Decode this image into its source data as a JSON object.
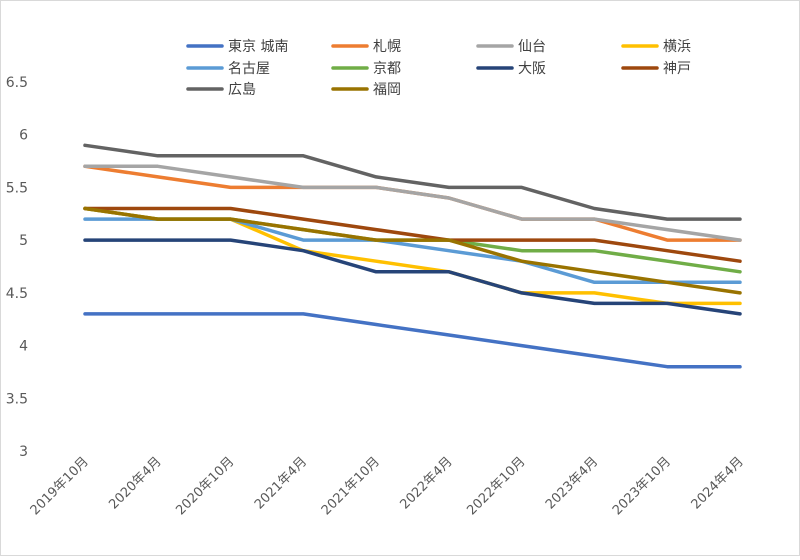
{
  "chart_data": {
    "type": "line",
    "title": "",
    "xlabel": "",
    "ylabel": "",
    "ylim": [
      3,
      6.5
    ],
    "yticks": [
      3,
      3.5,
      4,
      4.5,
      5,
      5.5,
      6,
      6.5
    ],
    "ytick_labels": [
      "3",
      "3.5",
      "4",
      "4.5",
      "5",
      "5.5",
      "6",
      "6.5"
    ],
    "grid": false,
    "legend_position": "top",
    "categories": [
      "2019年10月",
      "2020年4月",
      "2020年10月",
      "2021年4月",
      "2021年10月",
      "2022年4月",
      "2022年10月",
      "2023年4月",
      "2023年10月",
      "2024年4月"
    ],
    "series": [
      {
        "name": "東京 城南",
        "color": "#4472c4",
        "values": [
          4.3,
          4.3,
          4.3,
          4.3,
          4.2,
          4.1,
          4.0,
          3.9,
          3.8,
          3.8
        ]
      },
      {
        "name": "札幌",
        "color": "#ed7d31",
        "values": [
          5.7,
          5.6,
          5.5,
          5.5,
          5.5,
          5.4,
          5.2,
          5.2,
          5.0,
          5.0
        ]
      },
      {
        "name": "仙台",
        "color": "#a5a5a5",
        "values": [
          5.7,
          5.7,
          5.6,
          5.5,
          5.5,
          5.4,
          5.2,
          5.2,
          5.1,
          5.0
        ]
      },
      {
        "name": "横浜",
        "color": "#ffc000",
        "values": [
          5.3,
          5.2,
          5.2,
          4.9,
          4.8,
          4.7,
          4.5,
          4.5,
          4.4,
          4.4
        ]
      },
      {
        "name": "名古屋",
        "color": "#5b9bd5",
        "values": [
          5.2,
          5.2,
          5.2,
          5.0,
          5.0,
          4.9,
          4.8,
          4.6,
          4.6,
          4.6
        ]
      },
      {
        "name": "京都",
        "color": "#70ad47",
        "values": [
          5.3,
          5.2,
          5.2,
          5.1,
          5.0,
          5.0,
          4.9,
          4.9,
          4.8,
          4.7
        ]
      },
      {
        "name": "大阪",
        "color": "#264478",
        "values": [
          5.0,
          5.0,
          5.0,
          4.9,
          4.7,
          4.7,
          4.5,
          4.4,
          4.4,
          4.3
        ]
      },
      {
        "name": "神戸",
        "color": "#9e480e",
        "values": [
          5.3,
          5.3,
          5.3,
          5.2,
          5.1,
          5.0,
          5.0,
          5.0,
          4.9,
          4.8
        ]
      },
      {
        "name": "広島",
        "color": "#636363",
        "values": [
          5.9,
          5.8,
          5.8,
          5.8,
          5.6,
          5.5,
          5.5,
          5.3,
          5.2,
          5.2
        ]
      },
      {
        "name": "福岡",
        "color": "#997300",
        "values": [
          5.3,
          5.2,
          5.2,
          5.1,
          5.0,
          5.0,
          4.8,
          4.7,
          4.6,
          4.5
        ]
      }
    ]
  }
}
